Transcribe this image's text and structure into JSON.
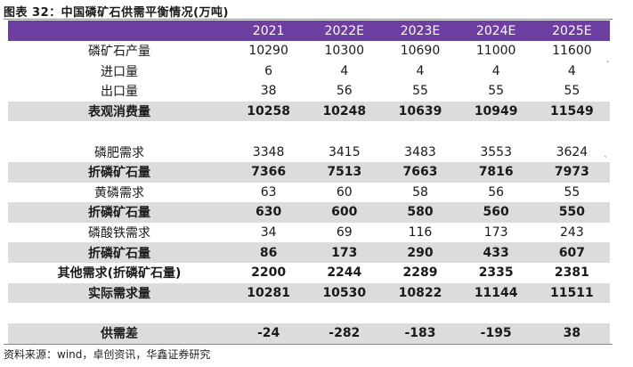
{
  "title": "图表 32：中国磷矿石供需平衡情况(万吨)",
  "header": {
    "label": "",
    "years": [
      "2021",
      "2022E",
      "2023E",
      "2024E",
      "2025E"
    ]
  },
  "rows": [
    {
      "label": "磷矿石产量",
      "values": [
        "10290",
        "10300",
        "10690",
        "11000",
        "11600"
      ],
      "bold": false,
      "shaded": false
    },
    {
      "label": "进口量",
      "values": [
        "6",
        "4",
        "4",
        "4",
        "4"
      ],
      "bold": false,
      "shaded": false
    },
    {
      "label": "出口量",
      "values": [
        "38",
        "56",
        "55",
        "55",
        "55"
      ],
      "bold": false,
      "shaded": false
    },
    {
      "label": "表观消费量",
      "values": [
        "10258",
        "10248",
        "10639",
        "10949",
        "11549"
      ],
      "bold": true,
      "shaded": true
    },
    {
      "label": "",
      "values": [
        "",
        "",
        "",
        "",
        ""
      ],
      "bold": false,
      "shaded": false
    },
    {
      "label": "磷肥需求",
      "values": [
        "3348",
        "3415",
        "3483",
        "3553",
        "3624"
      ],
      "bold": false,
      "shaded": false
    },
    {
      "label": "折磷矿石量",
      "values": [
        "7366",
        "7513",
        "7663",
        "7816",
        "7973"
      ],
      "bold": true,
      "shaded": true
    },
    {
      "label": "黄磷需求",
      "values": [
        "63",
        "60",
        "58",
        "56",
        "55"
      ],
      "bold": false,
      "shaded": false
    },
    {
      "label": "折磷矿石量",
      "values": [
        "630",
        "600",
        "580",
        "560",
        "550"
      ],
      "bold": true,
      "shaded": true
    },
    {
      "label": "磷酸铁需求",
      "values": [
        "34",
        "69",
        "116",
        "173",
        "243"
      ],
      "bold": false,
      "shaded": false
    },
    {
      "label": "折磷矿石量",
      "values": [
        "86",
        "173",
        "290",
        "433",
        "607"
      ],
      "bold": true,
      "shaded": true
    },
    {
      "label": "其他需求(折磷矿石量)",
      "values": [
        "2200",
        "2244",
        "2289",
        "2335",
        "2381"
      ],
      "bold": true,
      "shaded": false
    },
    {
      "label": "实际需求量",
      "values": [
        "10281",
        "10530",
        "10822",
        "11144",
        "11511"
      ],
      "bold": true,
      "shaded": true
    },
    {
      "label": "",
      "values": [
        "",
        "",
        "",
        "",
        ""
      ],
      "bold": false,
      "shaded": false
    },
    {
      "label": "供需差",
      "values": [
        "-24",
        "-282",
        "-183",
        "-195",
        "38"
      ],
      "bold": true,
      "shaded": true
    }
  ],
  "source": "资料来源：wind，卓创资讯，华鑫证券研究"
}
